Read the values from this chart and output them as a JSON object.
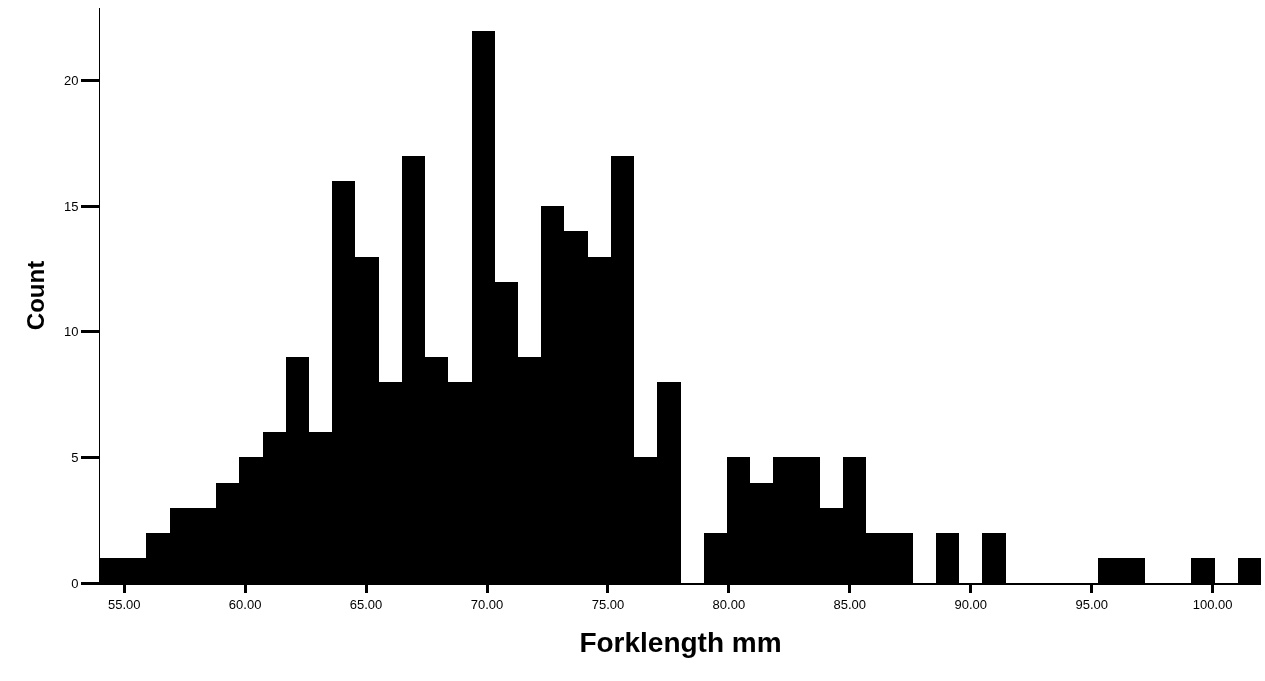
{
  "chart_data": {
    "type": "histogram",
    "xlabel": "Forklength mm",
    "ylabel": "Count",
    "color": "#000000",
    "bins": [
      54.0,
      54.96,
      55.92,
      56.88,
      57.84,
      58.8,
      59.76,
      60.72,
      61.68,
      62.64,
      63.6,
      64.56,
      65.52,
      66.48,
      67.44,
      68.4,
      69.36,
      70.32,
      71.28,
      72.24,
      73.2,
      74.16,
      75.12,
      76.08,
      77.04,
      78.0,
      78.96,
      79.92,
      80.88,
      81.84,
      82.8,
      83.76,
      84.72,
      85.68,
      86.64,
      87.6,
      88.56,
      89.52,
      90.48,
      91.44,
      92.4,
      93.36,
      94.32,
      95.28,
      96.24,
      97.2,
      98.16,
      99.12,
      100.08,
      101.04,
      102.0
    ],
    "values": [
      1,
      1,
      2,
      3,
      3,
      4,
      5,
      6,
      9,
      6,
      16,
      13,
      8,
      17,
      9,
      8,
      22,
      12,
      9,
      15,
      14,
      13,
      17,
      5,
      8,
      0,
      2,
      5,
      4,
      5,
      5,
      3,
      5,
      2,
      2,
      0,
      2,
      0,
      2,
      0,
      0,
      0,
      0,
      1,
      1,
      0,
      0,
      1,
      0,
      1
    ],
    "xlim": [
      54,
      102
    ],
    "ylim": [
      0,
      22.9
    ],
    "xticks": [
      {
        "value": 55,
        "label": "55.00"
      },
      {
        "value": 60,
        "label": "60.00"
      },
      {
        "value": 65,
        "label": "65.00"
      },
      {
        "value": 70,
        "label": "70.00"
      },
      {
        "value": 75,
        "label": "75.00"
      },
      {
        "value": 80,
        "label": "80.00"
      },
      {
        "value": 85,
        "label": "85.00"
      },
      {
        "value": 90,
        "label": "90.00"
      },
      {
        "value": 95,
        "label": "95.00"
      },
      {
        "value": 100,
        "label": "100.00"
      }
    ],
    "yticks": [
      0,
      5,
      10,
      15,
      20
    ]
  }
}
